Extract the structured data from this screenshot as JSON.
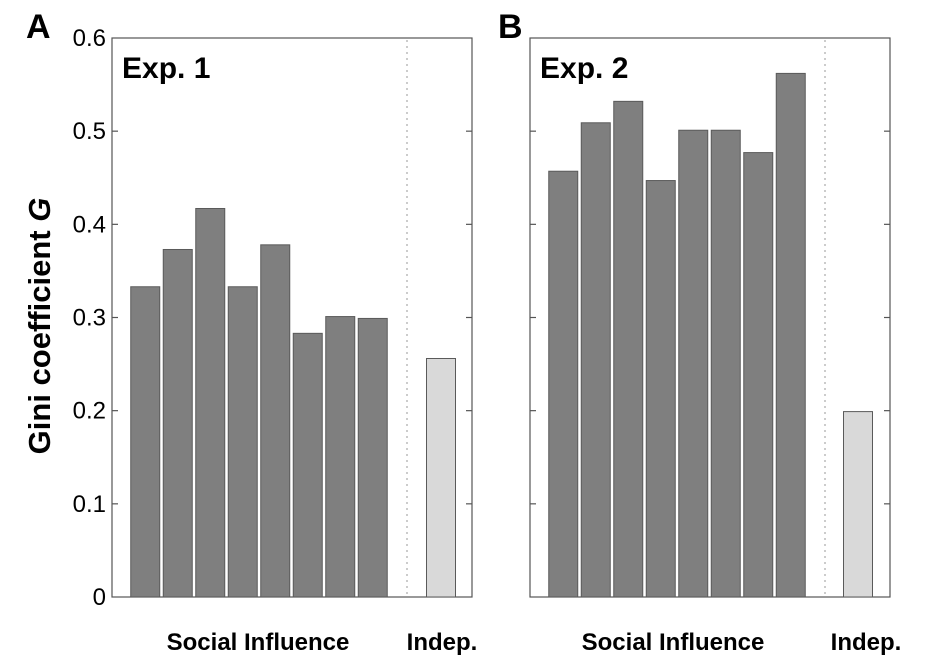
{
  "figure": {
    "ylabel_text": "Gini coefficient ",
    "ylabel_italic": "G"
  },
  "chart_data": [
    {
      "type": "bar",
      "panel_letter": "A",
      "title": "Exp. 1",
      "group_labels": [
        "Social Influence",
        "Indep."
      ],
      "social_influence_values": [
        0.333,
        0.373,
        0.417,
        0.333,
        0.378,
        0.283,
        0.301,
        0.299
      ],
      "independent_values": [
        0.256
      ],
      "ylim": [
        0,
        0.6
      ],
      "yticks": [
        "0",
        "0.1",
        "0.2",
        "0.3",
        "0.4",
        "0.5",
        "0.6"
      ],
      "colors": {
        "social": "#7f7f7f",
        "indep": "#d9d9d9"
      }
    },
    {
      "type": "bar",
      "panel_letter": "B",
      "title": "Exp. 2",
      "group_labels": [
        "Social Influence",
        "Indep."
      ],
      "social_influence_values": [
        0.457,
        0.509,
        0.532,
        0.447,
        0.501,
        0.501,
        0.477,
        0.562
      ],
      "independent_values": [
        0.199
      ],
      "ylim": [
        0,
        0.6
      ],
      "yticks": [
        "0",
        "0.1",
        "0.2",
        "0.3",
        "0.4",
        "0.5",
        "0.6"
      ],
      "colors": {
        "social": "#7f7f7f",
        "indep": "#d9d9d9"
      }
    }
  ]
}
